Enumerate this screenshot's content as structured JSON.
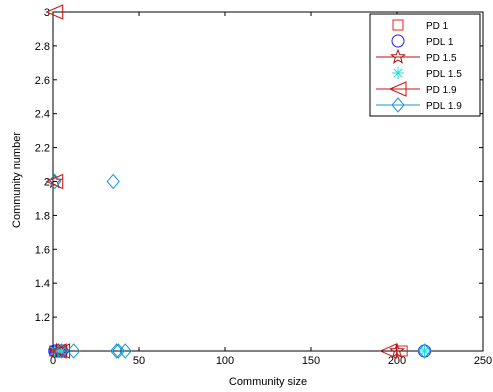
{
  "chart_data": {
    "type": "scatter",
    "xlabel": "Community size",
    "ylabel": "Community number",
    "xlim": [
      0,
      250
    ],
    "ylim": [
      1,
      3
    ],
    "xticks": [
      0,
      50,
      100,
      150,
      200,
      250
    ],
    "yticks": [
      1.2,
      1.4,
      1.6,
      1.8,
      2,
      2.2,
      2.4,
      2.6,
      2.8,
      3
    ],
    "ytick_labels": [
      "1.2",
      "1.4",
      "1.6",
      "1.8",
      "2",
      "2.2",
      "2.4",
      "2.6",
      "2.8",
      "3"
    ],
    "xtick_labels": [
      "0",
      "50",
      "100",
      "150",
      "200",
      "250"
    ],
    "grid": false,
    "legend_position": "top-right",
    "series": [
      {
        "name": "PD 1",
        "marker": "square",
        "color": "#e8202a",
        "line": false,
        "x": [
          1,
          2,
          3,
          4,
          5,
          203
        ],
        "y": [
          1,
          1,
          1,
          1,
          1,
          1
        ]
      },
      {
        "name": "PDL 1",
        "marker": "circle",
        "color": "#1a1aff",
        "line": false,
        "x": [
          1,
          2,
          3,
          4,
          5,
          216
        ],
        "y": [
          1,
          1,
          1,
          1,
          1,
          1
        ]
      },
      {
        "name": "PD 1.5",
        "marker": "star",
        "color": "#b01010",
        "line": true,
        "x": [
          1,
          2,
          3,
          200
        ],
        "y": [
          2,
          1,
          1,
          1
        ]
      },
      {
        "name": "PDL 1.5",
        "marker": "asterisk",
        "color": "#22dddd",
        "line": false,
        "x": [
          1,
          3,
          5,
          216
        ],
        "y": [
          1,
          1,
          1,
          1
        ]
      },
      {
        "name": "PD 1.9",
        "marker": "triangle-left",
        "color": "#cc1010",
        "line": true,
        "x": [
          1,
          1,
          3,
          5,
          195
        ],
        "y": [
          3,
          2,
          1,
          1,
          1
        ]
      },
      {
        "name": "PDL 1.9",
        "marker": "diamond",
        "color": "#1a9ad6",
        "line": true,
        "x": [
          1,
          5,
          12,
          35,
          37,
          38,
          42,
          216
        ],
        "y": [
          2,
          1,
          1,
          2,
          1,
          1,
          1,
          1
        ]
      }
    ]
  }
}
